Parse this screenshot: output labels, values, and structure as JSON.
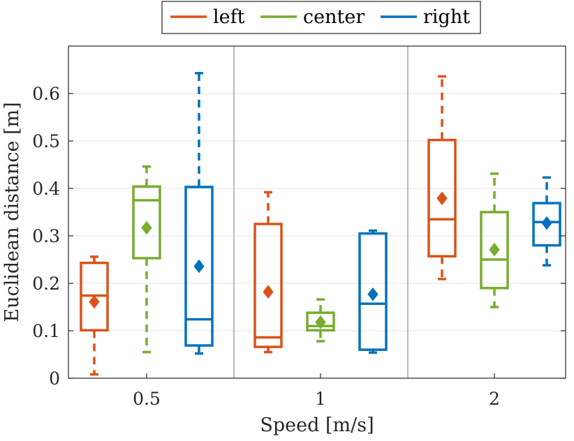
{
  "chart_data": {
    "type": "boxplot",
    "xlabel": "Speed [m/s]",
    "ylabel": "Euclidean distance [m]",
    "ylim": [
      0,
      0.7
    ],
    "grid": true,
    "legend_position": "top-center-outside",
    "categories": [
      "0.5",
      "1",
      "2"
    ],
    "y_ticks": [
      0,
      0.1,
      0.2,
      0.3,
      0.4,
      0.5,
      0.6
    ],
    "y_tick_labels": [
      "0",
      "0.1",
      "0.2",
      "0.3",
      "0.4",
      "0.5",
      "0.6"
    ],
    "series": [
      {
        "name": "left",
        "color": "#D95319",
        "boxes": [
          {
            "category": "0.5",
            "whisker_low": 0.008,
            "q1": 0.101,
            "median": 0.174,
            "q3": 0.243,
            "whisker_high": 0.256,
            "mean": 0.161
          },
          {
            "category": "1",
            "whisker_low": 0.055,
            "q1": 0.066,
            "median": 0.086,
            "q3": 0.325,
            "whisker_high": 0.392,
            "mean": 0.182
          },
          {
            "category": "2",
            "whisker_low": 0.209,
            "q1": 0.257,
            "median": 0.335,
            "q3": 0.502,
            "whisker_high": 0.636,
            "mean": 0.379
          }
        ]
      },
      {
        "name": "center",
        "color": "#77AC30",
        "boxes": [
          {
            "category": "0.5",
            "whisker_low": 0.055,
            "q1": 0.253,
            "median": 0.375,
            "q3": 0.404,
            "whisker_high": 0.446,
            "mean": 0.317
          },
          {
            "category": "1",
            "whisker_low": 0.078,
            "q1": 0.101,
            "median": 0.11,
            "q3": 0.138,
            "whisker_high": 0.166,
            "mean": 0.118
          },
          {
            "category": "2",
            "whisker_low": 0.15,
            "q1": 0.19,
            "median": 0.25,
            "q3": 0.35,
            "whisker_high": 0.431,
            "mean": 0.271
          }
        ]
      },
      {
        "name": "right",
        "color": "#0072BD",
        "boxes": [
          {
            "category": "0.5",
            "whisker_low": 0.052,
            "q1": 0.069,
            "median": 0.124,
            "q3": 0.403,
            "whisker_high": 0.643,
            "mean": 0.236
          },
          {
            "category": "1",
            "whisker_low": 0.054,
            "q1": 0.06,
            "median": 0.157,
            "q3": 0.305,
            "whisker_high": 0.311,
            "mean": 0.177
          },
          {
            "category": "2",
            "whisker_low": 0.238,
            "q1": 0.28,
            "median": 0.329,
            "q3": 0.369,
            "whisker_high": 0.423,
            "mean": 0.327
          }
        ]
      }
    ]
  }
}
